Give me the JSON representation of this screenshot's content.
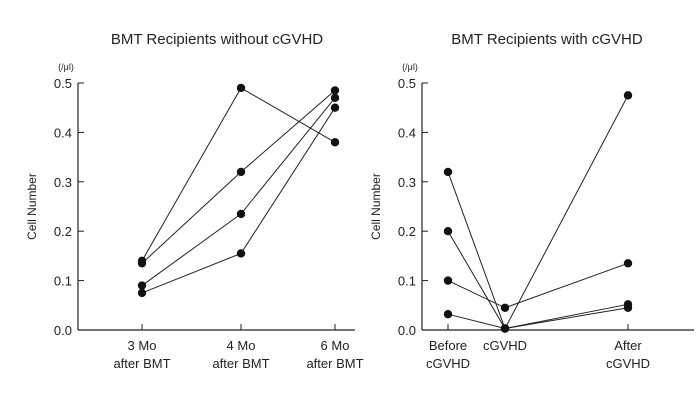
{
  "chart_data": [
    {
      "type": "line",
      "title": "BMT Recipients without cGVHD",
      "ylabel": "Cell Number",
      "unit": "(/μl)",
      "ylim": [
        0,
        0.5
      ],
      "yticks": [
        "0.0",
        "0.1",
        "0.2",
        "0.3",
        "0.4",
        "0.5"
      ],
      "categories": [
        [
          "3 Mo",
          "after BMT"
        ],
        [
          "4 Mo",
          "after BMT"
        ],
        [
          "6 Mo",
          "after BMT"
        ]
      ],
      "series": [
        {
          "values": [
            0.14,
            0.49,
            0.38
          ]
        },
        {
          "values": [
            0.135,
            0.32,
            0.485
          ]
        },
        {
          "values": [
            0.09,
            0.235,
            0.47
          ]
        },
        {
          "values": [
            0.075,
            0.155,
            0.45
          ]
        }
      ]
    },
    {
      "type": "line",
      "title": "BMT Recipients with cGVHD",
      "ylabel": "Cell Number",
      "unit": "(/μl)",
      "ylim": [
        0,
        0.5
      ],
      "yticks": [
        "0.0",
        "0.1",
        "0.2",
        "0.3",
        "0.4",
        "0.5"
      ],
      "categories": [
        [
          "Before",
          "cGVHD"
        ],
        [
          "cGVHD"
        ],
        [
          "After",
          "cGVHD"
        ]
      ],
      "series": [
        {
          "values": [
            0.32,
            0.003,
            0.475
          ]
        },
        {
          "values": [
            0.2,
            0.003,
            0.045
          ]
        },
        {
          "values": [
            0.1,
            0.045,
            0.135
          ]
        },
        {
          "values": [
            0.032,
            0.003,
            0.052
          ]
        }
      ]
    }
  ]
}
